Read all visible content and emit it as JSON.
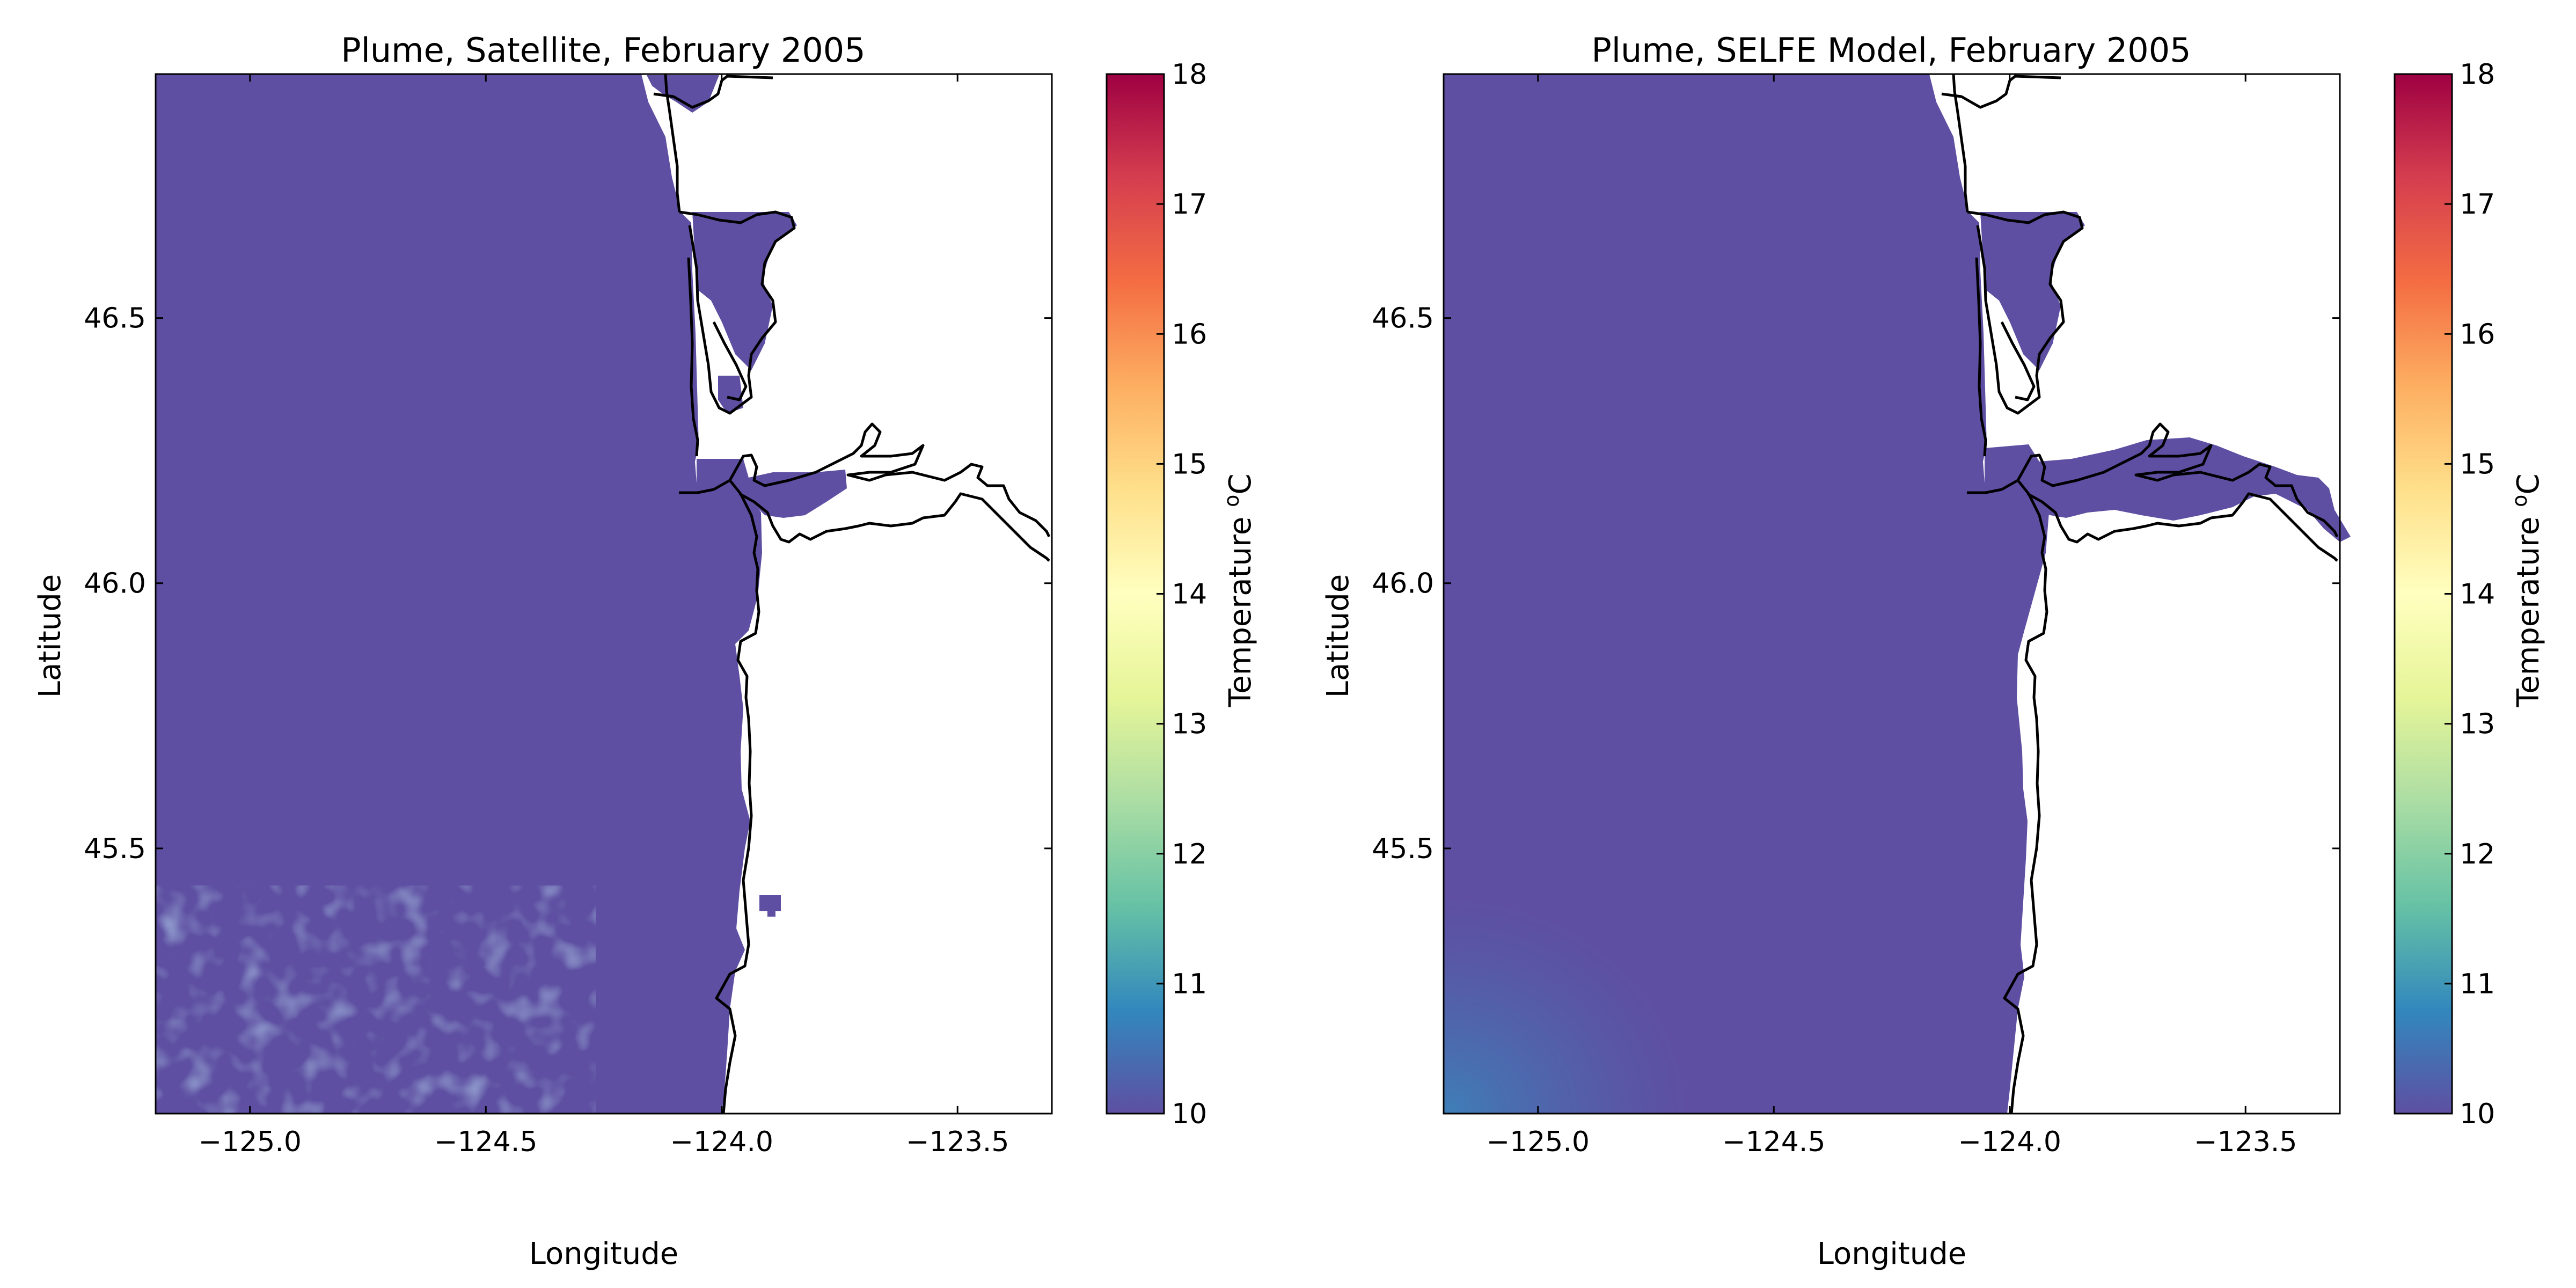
{
  "chart_data": [
    {
      "type": "heatmap",
      "title": "Plume, Satellite, February 2005",
      "xlabel": "Longitude",
      "ylabel": "Latitude",
      "xlim": [
        -125.2,
        -123.3
      ],
      "ylim": [
        45.0,
        46.96
      ],
      "xticks": [
        -125.0,
        -124.5,
        -124.0,
        -123.5
      ],
      "xtick_labels": [
        "−125.0",
        "−124.5",
        "−124.0",
        "−123.5"
      ],
      "yticks": [
        45.5,
        46.0,
        46.5
      ],
      "ytick_labels": [
        "45.5",
        "46.0",
        "46.5"
      ],
      "colorbar": {
        "label": "Temperature °C",
        "label_base": "Temperature ",
        "label_sup": "o",
        "label_unit": "C",
        "range": [
          10,
          18
        ],
        "ticks": [
          10,
          11,
          12,
          13,
          14,
          15,
          16,
          17,
          18
        ],
        "colormap": "Spectral_r"
      },
      "field": {
        "description_value": "ocean temperature around 10 °C with patchy 10–10.5 °C values in the south-west",
        "base_value": 10.0,
        "base_color": "#5e4fa2",
        "southwest_patch_color": "#5a63aa"
      },
      "grid": false
    },
    {
      "type": "heatmap",
      "title": "Plume, SELFE Model, February 2005",
      "xlabel": "Longitude",
      "ylabel": "Latitude",
      "xlim": [
        -125.2,
        -123.3
      ],
      "ylim": [
        45.0,
        46.96
      ],
      "xticks": [
        -125.0,
        -124.5,
        -124.0,
        -123.5
      ],
      "xtick_labels": [
        "−125.0",
        "−124.5",
        "−124.0",
        "−123.5"
      ],
      "yticks": [
        45.5,
        46.0,
        46.5
      ],
      "ytick_labels": [
        "45.5",
        "46.0",
        "46.5"
      ],
      "colorbar": {
        "label": "Temperature °C",
        "label_base": "Temperature ",
        "label_sup": "o",
        "label_unit": "C",
        "range": [
          10,
          18
        ],
        "ticks": [
          10,
          11,
          12,
          13,
          14,
          15,
          16,
          17,
          18
        ],
        "colormap": "Spectral_r"
      },
      "field": {
        "base_value": 10.0,
        "base_color": "#5e4fa2",
        "gradient_corner_value": 10.9,
        "gradient_corner_color": "#3e7fb8"
      },
      "grid": false
    }
  ],
  "colormap_stops": [
    "#5e4fa2",
    "#3288bd",
    "#66c2a5",
    "#abdda4",
    "#e6f598",
    "#ffffbf",
    "#fee08b",
    "#fdae61",
    "#f46d43",
    "#d53e4f",
    "#9e0142"
  ]
}
